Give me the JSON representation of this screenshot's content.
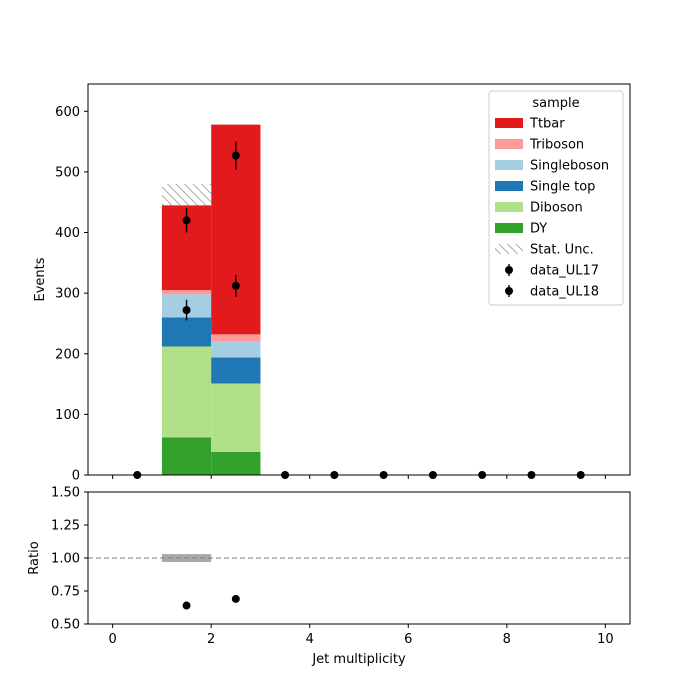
{
  "chart_data": [
    {
      "type": "bar",
      "subtype": "stacked-histogram",
      "xlabel": "",
      "ylabel": "Events",
      "xlim": [
        -0.5,
        10.5
      ],
      "ylim": [
        0,
        645
      ],
      "xticks": [
        0,
        2,
        4,
        6,
        8,
        10
      ],
      "yticks": [
        0,
        100,
        200,
        300,
        400,
        500,
        600
      ],
      "bin_edges": [
        1,
        2,
        3
      ],
      "legend": {
        "title": "sample",
        "placement": "top-right"
      },
      "series": [
        {
          "name": "DY",
          "color": "#33a02c",
          "values": [
            62,
            38
          ]
        },
        {
          "name": "Diboson",
          "color": "#b2df8a",
          "values": [
            150,
            113
          ]
        },
        {
          "name": "Single top",
          "color": "#1f78b4",
          "values": [
            48,
            43
          ]
        },
        {
          "name": "Singleboson",
          "color": "#a6cee3",
          "values": [
            38,
            27
          ]
        },
        {
          "name": "Triboson",
          "color": "#fb9a99",
          "values": [
            7,
            11
          ]
        },
        {
          "name": "Ttbar",
          "color": "#e31a1c",
          "values": [
            140,
            346
          ]
        }
      ],
      "uncertainty": {
        "name": "Stat. Unc.",
        "bins": [
          {
            "x0": 1,
            "x1": 2,
            "low": 445,
            "high": 480
          }
        ]
      },
      "data_points": [
        {
          "name": "data_UL17",
          "points": [
            {
              "x": 0.5,
              "y": 0
            },
            {
              "x": 1.5,
              "y": 420,
              "err": 20
            },
            {
              "x": 2.5,
              "y": 527,
              "err": 23
            },
            {
              "x": 3.5,
              "y": 0
            },
            {
              "x": 4.5,
              "y": 0
            },
            {
              "x": 5.5,
              "y": 0
            },
            {
              "x": 6.5,
              "y": 0
            },
            {
              "x": 7.5,
              "y": 0
            },
            {
              "x": 8.5,
              "y": 0
            },
            {
              "x": 9.5,
              "y": 0
            }
          ]
        },
        {
          "name": "data_UL18",
          "points": [
            {
              "x": 1.5,
              "y": 272,
              "err": 17
            },
            {
              "x": 2.5,
              "y": 312,
              "err": 18
            }
          ]
        }
      ]
    },
    {
      "type": "scatter",
      "subtype": "ratio",
      "xlabel": "Jet multiplicity",
      "ylabel": "Ratio",
      "xlim": [
        -0.5,
        10.5
      ],
      "ylim": [
        0.5,
        1.5
      ],
      "xticks": [
        0,
        2,
        4,
        6,
        8,
        10
      ],
      "yticks": [
        "0.50",
        "0.75",
        "1.00",
        "1.25",
        "1.50"
      ],
      "reference_line": 1.0,
      "uncertainty_band": [
        {
          "x0": 1,
          "x1": 2,
          "low": 0.97,
          "high": 1.03
        }
      ],
      "points": [
        {
          "x": 1.5,
          "y": 0.64,
          "err": 0.03
        },
        {
          "x": 2.5,
          "y": 0.69,
          "err": 0.02
        }
      ]
    }
  ]
}
